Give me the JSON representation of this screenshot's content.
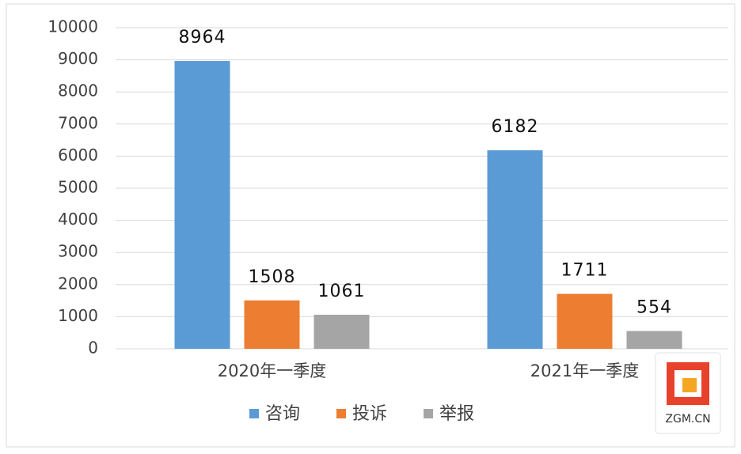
{
  "chart_data": {
    "type": "bar",
    "categories": [
      "2020年一季度",
      "2021年一季度"
    ],
    "series": [
      {
        "name": "咨询",
        "color": "#5b9bd5",
        "values": [
          8964,
          6182
        ]
      },
      {
        "name": "投诉",
        "color": "#ed7d31",
        "values": [
          1508,
          1711
        ]
      },
      {
        "name": "举报",
        "color": "#a5a5a5",
        "values": [
          1061,
          554
        ]
      }
    ],
    "ylim": [
      0,
      10000
    ],
    "yticks": [
      0,
      1000,
      2000,
      3000,
      4000,
      5000,
      6000,
      7000,
      8000,
      9000,
      10000
    ],
    "grid": true,
    "legend": "bottom",
    "watermark": "ZGM.CN"
  }
}
